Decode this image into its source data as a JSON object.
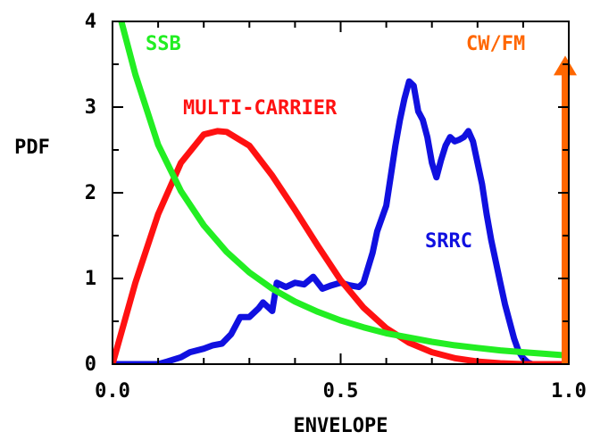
{
  "chart_data": {
    "type": "line",
    "title": "",
    "xlabel": "ENVELOPE",
    "ylabel": "PDF",
    "xlim": [
      0,
      1
    ],
    "ylim": [
      0,
      4
    ],
    "grid": false,
    "x_ticks": [
      "0.0",
      "0.5",
      "1.0"
    ],
    "y_ticks": [
      "0",
      "1",
      "2",
      "3",
      "4"
    ],
    "series": [
      {
        "name": "SSB",
        "color": "#22ee22",
        "x": [
          0.02,
          0.05,
          0.1,
          0.15,
          0.2,
          0.25,
          0.3,
          0.35,
          0.4,
          0.45,
          0.5,
          0.55,
          0.6,
          0.65,
          0.7,
          0.75,
          0.8,
          0.85,
          0.9,
          0.95,
          1.0
        ],
        "y": [
          3.99,
          3.38,
          2.56,
          2.02,
          1.62,
          1.31,
          1.07,
          0.88,
          0.73,
          0.61,
          0.51,
          0.43,
          0.36,
          0.31,
          0.26,
          0.22,
          0.19,
          0.16,
          0.14,
          0.12,
          0.1
        ]
      },
      {
        "name": "MULTI-CARRIER",
        "color": "#ff1111",
        "x": [
          0.0,
          0.05,
          0.1,
          0.15,
          0.2,
          0.23,
          0.25,
          0.3,
          0.35,
          0.4,
          0.45,
          0.5,
          0.55,
          0.6,
          0.65,
          0.7,
          0.75,
          0.8,
          0.85,
          0.9,
          0.95,
          1.0
        ],
        "y": [
          0.0,
          0.95,
          1.75,
          2.35,
          2.68,
          2.72,
          2.71,
          2.55,
          2.2,
          1.8,
          1.38,
          0.98,
          0.66,
          0.42,
          0.25,
          0.14,
          0.07,
          0.03,
          0.01,
          0.0,
          0.0,
          0.0
        ]
      },
      {
        "name": "SRRC",
        "color": "#1010e0",
        "x": [
          0.0,
          0.05,
          0.1,
          0.12,
          0.15,
          0.17,
          0.2,
          0.22,
          0.24,
          0.26,
          0.28,
          0.3,
          0.32,
          0.33,
          0.35,
          0.36,
          0.38,
          0.4,
          0.42,
          0.44,
          0.46,
          0.48,
          0.5,
          0.52,
          0.54,
          0.55,
          0.57,
          0.58,
          0.6,
          0.61,
          0.62,
          0.63,
          0.64,
          0.65,
          0.66,
          0.67,
          0.68,
          0.69,
          0.7,
          0.71,
          0.72,
          0.73,
          0.74,
          0.75,
          0.76,
          0.77,
          0.78,
          0.79,
          0.8,
          0.81,
          0.82,
          0.83,
          0.84,
          0.85,
          0.86,
          0.87,
          0.88,
          0.89,
          0.9,
          0.91,
          0.92,
          0.93,
          0.94,
          0.95,
          0.97,
          1.0
        ],
        "y": [
          0.0,
          0.0,
          0.0,
          0.03,
          0.08,
          0.14,
          0.18,
          0.22,
          0.24,
          0.35,
          0.55,
          0.55,
          0.65,
          0.72,
          0.62,
          0.95,
          0.9,
          0.95,
          0.93,
          1.02,
          0.88,
          0.92,
          0.95,
          0.92,
          0.9,
          0.95,
          1.3,
          1.55,
          1.85,
          2.2,
          2.55,
          2.85,
          3.1,
          3.3,
          3.25,
          2.95,
          2.85,
          2.65,
          2.35,
          2.18,
          2.38,
          2.55,
          2.65,
          2.6,
          2.62,
          2.65,
          2.72,
          2.6,
          2.35,
          2.1,
          1.75,
          1.45,
          1.2,
          0.95,
          0.7,
          0.5,
          0.3,
          0.15,
          0.07,
          0.02,
          0.0,
          0.0,
          0.0,
          0.0,
          0.0,
          0.0
        ]
      },
      {
        "name": "CW/FM",
        "color": "#ff6600",
        "type": "impulse",
        "x": [
          1.0
        ],
        "y": [
          3.6
        ]
      }
    ]
  }
}
